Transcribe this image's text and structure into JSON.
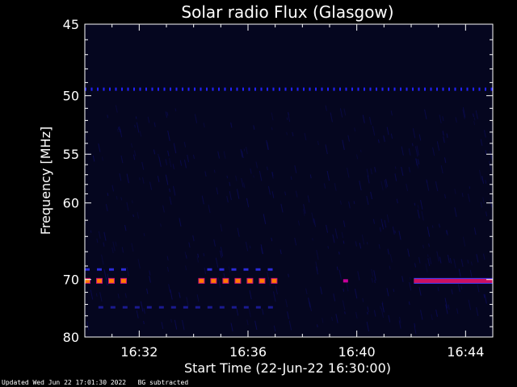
{
  "chart_data": {
    "type": "heatmap",
    "title": "Solar radio Flux (Glasgow)",
    "xlabel": "Start Time (22-Jun-22 16:30:00)",
    "ylabel": "Frequency [MHz]",
    "x_unit": "minutes after 16:30",
    "xlim": [
      0,
      15
    ],
    "ylim": [
      45,
      80
    ],
    "y_scale": "reciprocal",
    "x_ticks": [
      {
        "value": 2,
        "label": "16:32"
      },
      {
        "value": 6,
        "label": "16:36"
      },
      {
        "value": 10,
        "label": "16:40"
      },
      {
        "value": 14,
        "label": "16:44"
      }
    ],
    "y_ticks": [
      {
        "value": 45,
        "label": "45"
      },
      {
        "value": 50,
        "label": "50"
      },
      {
        "value": 55,
        "label": "55"
      },
      {
        "value": 60,
        "label": "60"
      },
      {
        "value": 70,
        "label": "70"
      },
      {
        "value": 80,
        "label": "80"
      }
    ],
    "background_color": "#05061f",
    "bands": [
      {
        "freq": 49.5,
        "start": 0,
        "end": 15,
        "intensity": "medium",
        "pattern": "dotted",
        "color": "#2222ff"
      },
      {
        "freq": 68.5,
        "start": 0,
        "end": 1.8,
        "intensity": "low",
        "pattern": "dashed",
        "color": "#2a2ad8"
      },
      {
        "freq": 68.5,
        "start": 4.5,
        "end": 7.2,
        "intensity": "low",
        "pattern": "dashed",
        "color": "#2a2ad8"
      },
      {
        "freq": 70.2,
        "start": 0,
        "end": 1.7,
        "intensity": "high",
        "pattern": "dashed",
        "color": "#ff7a00"
      },
      {
        "freq": 70.2,
        "start": 4.2,
        "end": 7.3,
        "intensity": "high",
        "pattern": "dashed",
        "color": "#ff7a00"
      },
      {
        "freq": 70.2,
        "start": 9.5,
        "end": 9.9,
        "intensity": "medium",
        "pattern": "dashed",
        "color": "#c8009a"
      },
      {
        "freq": 70.2,
        "start": 12.1,
        "end": 15,
        "intensity": "high",
        "pattern": "solid",
        "color": "#cc1060"
      },
      {
        "freq": 74.5,
        "start": 0.5,
        "end": 7.2,
        "intensity": "low",
        "pattern": "dashed",
        "color": "#1a1a90"
      }
    ]
  },
  "footer": {
    "updated": "Updated Wed Jun 22 17:01:30 2022",
    "note": "BG subtracted"
  },
  "colors": {
    "axes": "#ffffff",
    "text": "#ffffff"
  }
}
